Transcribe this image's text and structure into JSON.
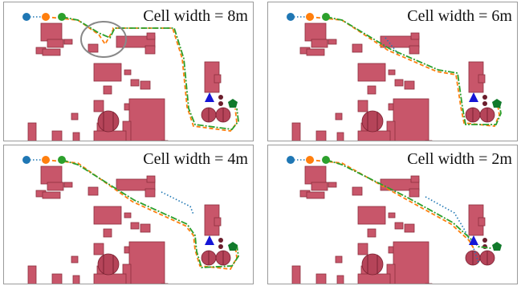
{
  "panels": [
    {
      "caption": "Cell width = 8m"
    },
    {
      "caption": "Cell width = 6m"
    },
    {
      "caption": "Cell width = 4m"
    },
    {
      "caption": "Cell width = 2m"
    }
  ],
  "colors": {
    "building": "#c8566a",
    "start_marker": "#1f77b4",
    "orange_marker": "#ff7f0e",
    "green_marker": "#2ca02c",
    "target_triangle": "#1515d6",
    "target_pentagon": "#117a2b",
    "highlight_circle": "#888888"
  },
  "icons": {
    "target": "triangle-icon",
    "goal": "pentagon-icon"
  }
}
